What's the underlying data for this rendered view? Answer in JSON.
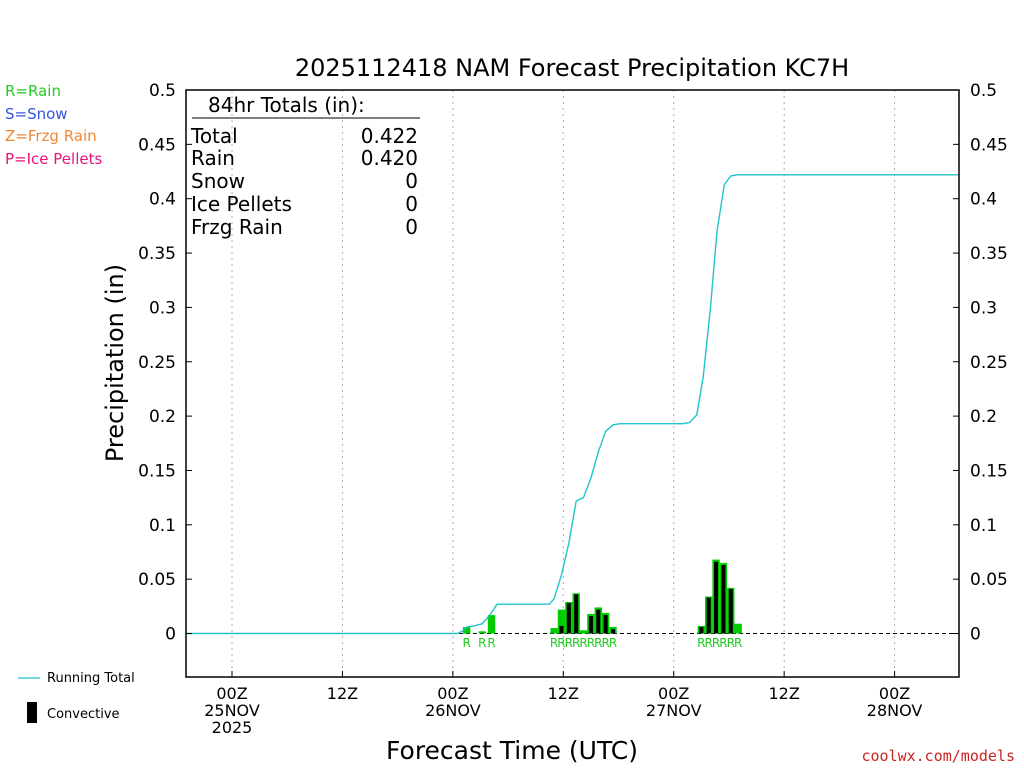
{
  "chart_data": {
    "type": "bar",
    "title": "2025112418 NAM Forecast Precipitation KC7H",
    "ylabel": "Precipitation (in)",
    "xlabel": "Forecast Time (UTC)",
    "ylim": [
      -0.04,
      0.5
    ],
    "y_ticks": [
      "0.5",
      "0.45",
      "0.4",
      "0.35",
      "0.3",
      "0.25",
      "0.2",
      "0.15",
      "0.1",
      "0.05",
      "0"
    ],
    "x_range_hours": [
      -5,
      79
    ],
    "x_ticks": [
      {
        "hour": 0,
        "line1": "00Z",
        "line2": "25NOV",
        "line3": "2025"
      },
      {
        "hour": 12,
        "line1": "12Z",
        "line2": "",
        "line3": ""
      },
      {
        "hour": 24,
        "line1": "00Z",
        "line2": "26NOV",
        "line3": ""
      },
      {
        "hour": 36,
        "line1": "12Z",
        "line2": "",
        "line3": ""
      },
      {
        "hour": 48,
        "line1": "00Z",
        "line2": "27NOV",
        "line3": ""
      },
      {
        "hour": 60,
        "line1": "12Z",
        "line2": "",
        "line3": ""
      },
      {
        "hour": 72,
        "line1": "00Z",
        "line2": "28NOV",
        "line3": ""
      }
    ],
    "bars": [
      {
        "hour": 25.5,
        "total": 0.006,
        "convective": 0.0
      },
      {
        "hour": 27.2,
        "total": 0.002,
        "convective": 0.0
      },
      {
        "hour": 28.2,
        "total": 0.017,
        "convective": 0.0
      },
      {
        "hour": 35.0,
        "total": 0.005,
        "convective": 0.0
      },
      {
        "hour": 35.8,
        "total": 0.022,
        "convective": 0.007
      },
      {
        "hour": 36.6,
        "total": 0.029,
        "convective": 0.028
      },
      {
        "hour": 37.4,
        "total": 0.037,
        "convective": 0.036
      },
      {
        "hour": 38.2,
        "total": 0.003,
        "convective": 0.0
      },
      {
        "hour": 39.0,
        "total": 0.018,
        "convective": 0.016
      },
      {
        "hour": 39.8,
        "total": 0.024,
        "convective": 0.022
      },
      {
        "hour": 40.6,
        "total": 0.019,
        "convective": 0.017
      },
      {
        "hour": 41.4,
        "total": 0.006,
        "convective": 0.004
      },
      {
        "hour": 51.0,
        "total": 0.007,
        "convective": 0.006
      },
      {
        "hour": 51.8,
        "total": 0.034,
        "convective": 0.033
      },
      {
        "hour": 52.6,
        "total": 0.068,
        "convective": 0.066
      },
      {
        "hour": 53.4,
        "total": 0.065,
        "convective": 0.063
      },
      {
        "hour": 54.2,
        "total": 0.042,
        "convective": 0.041
      },
      {
        "hour": 55.0,
        "total": 0.009,
        "convective": 0.0
      }
    ],
    "running_total": {
      "hours": [
        -5,
        24.5,
        25.0,
        25.5,
        26.3,
        27.2,
        28.1,
        28.8,
        31.5,
        33.0,
        34.5,
        35.0,
        35.8,
        36.6,
        37.4,
        38.2,
        39.0,
        39.8,
        40.6,
        41.4,
        42.2,
        46.0,
        49.0,
        49.7,
        50.5,
        51.2,
        52.0,
        52.7,
        53.5,
        54.2,
        54.9,
        56.0,
        79
      ],
      "values": [
        0.0,
        0.0,
        0.002,
        0.006,
        0.007,
        0.009,
        0.018,
        0.027,
        0.027,
        0.027,
        0.027,
        0.032,
        0.054,
        0.083,
        0.122,
        0.125,
        0.143,
        0.167,
        0.186,
        0.192,
        0.193,
        0.193,
        0.193,
        0.194,
        0.201,
        0.236,
        0.3,
        0.37,
        0.413,
        0.421,
        0.422,
        0.422,
        0.422
      ]
    },
    "ptype_labels": [
      {
        "hour": 25.5,
        "text": "R"
      },
      {
        "hour": 27.2,
        "text": "R"
      },
      {
        "hour": 28.2,
        "text": "R"
      },
      {
        "hour": 35.0,
        "text": "R"
      },
      {
        "hour": 35.8,
        "text": "R"
      },
      {
        "hour": 36.6,
        "text": "R"
      },
      {
        "hour": 37.4,
        "text": "R"
      },
      {
        "hour": 38.2,
        "text": "R"
      },
      {
        "hour": 39.0,
        "text": "R"
      },
      {
        "hour": 39.8,
        "text": "R"
      },
      {
        "hour": 40.6,
        "text": "R"
      },
      {
        "hour": 41.4,
        "text": "R"
      },
      {
        "hour": 51.0,
        "text": "R"
      },
      {
        "hour": 51.8,
        "text": "R"
      },
      {
        "hour": 52.6,
        "text": "R"
      },
      {
        "hour": 53.4,
        "text": "R"
      },
      {
        "hour": 54.2,
        "text": "R"
      },
      {
        "hour": 55.0,
        "text": "R"
      }
    ],
    "totals_box": {
      "heading": "84hr Totals (in):",
      "rows": [
        {
          "label": "Total",
          "value": "0.422"
        },
        {
          "label": "Rain",
          "value": "0.420"
        },
        {
          "label": "Snow",
          "value": "0"
        },
        {
          "label": "Ice Pellets",
          "value": "0"
        },
        {
          "label": "Frzg Rain",
          "value": "0"
        }
      ]
    },
    "ptype_legend": [
      {
        "text": "R=Rain",
        "color": "#22cc22"
      },
      {
        "text": "S=Snow",
        "color": "#3355dd"
      },
      {
        "text": "Z=Frzg Rain",
        "color": "#ee8833"
      },
      {
        "text": "P=Ice Pellets",
        "color": "#e8147c"
      }
    ],
    "series_legend": {
      "running_total": "Running Total",
      "convective": "Convective"
    },
    "credit": "coolwx.com/models",
    "colors": {
      "rain": "#00cc00",
      "convective": "#000000",
      "running_total": "#22c4cc",
      "axis": "#000000",
      "grid": "#aaaaaa",
      "credit": "#cc2222",
      "ptype_label": "#22cc22"
    }
  }
}
